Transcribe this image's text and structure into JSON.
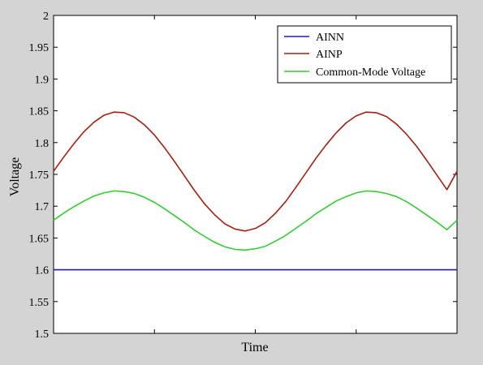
{
  "chart_data": {
    "type": "line",
    "xlabel": "Time",
    "ylabel": "Voltage",
    "ylim": [
      1.5,
      2.0
    ],
    "yticks": [
      "1.5",
      "1.55",
      "1.6",
      "1.65",
      "1.7",
      "1.75",
      "1.8",
      "1.85",
      "1.9",
      "1.95",
      "2"
    ],
    "x_ticks_shown": false,
    "grid": false,
    "legend_position": "top-right",
    "series": [
      {
        "name": "AINN",
        "color": "#1f1fa0",
        "x": [
          0,
          0.5,
          1,
          1.5,
          2,
          2.5,
          3,
          3.5,
          4,
          4.5,
          5,
          5.5,
          6,
          6.5,
          7,
          7.5,
          8,
          8.5,
          9,
          9.5,
          10,
          10.5,
          11,
          11.5,
          12,
          12.5,
          13,
          13.5,
          14,
          14.5,
          15,
          15.5,
          16,
          16.5,
          17,
          17.5,
          18,
          18.5,
          19,
          19.5,
          20
        ],
        "y": [
          1.6,
          1.6,
          1.6,
          1.6,
          1.6,
          1.6,
          1.6,
          1.6,
          1.6,
          1.6,
          1.6,
          1.6,
          1.6,
          1.6,
          1.6,
          1.6,
          1.6,
          1.6,
          1.6,
          1.6,
          1.6,
          1.6,
          1.6,
          1.6,
          1.6,
          1.6,
          1.6,
          1.6,
          1.6,
          1.6,
          1.6,
          1.6,
          1.6,
          1.6,
          1.6,
          1.6,
          1.6,
          1.6,
          1.6,
          1.6,
          1.6
        ]
      },
      {
        "name": "AINP",
        "color": "#a02010",
        "x": [
          0,
          0.5,
          1,
          1.5,
          2,
          2.5,
          3,
          3.5,
          4,
          4.5,
          5,
          5.5,
          6,
          6.5,
          7,
          7.5,
          8,
          8.5,
          9,
          9.5,
          10,
          10.5,
          11,
          11.5,
          12,
          12.5,
          13,
          13.5,
          14,
          14.5,
          15,
          15.5,
          16,
          16.5,
          17,
          17.5,
          18,
          18.5,
          19,
          19.5,
          20
        ],
        "y": [
          1.755,
          1.777,
          1.798,
          1.817,
          1.832,
          1.843,
          1.848,
          1.847,
          1.84,
          1.828,
          1.812,
          1.792,
          1.77,
          1.747,
          1.724,
          1.703,
          1.686,
          1.672,
          1.664,
          1.661,
          1.665,
          1.674,
          1.689,
          1.707,
          1.729,
          1.752,
          1.775,
          1.796,
          1.815,
          1.831,
          1.842,
          1.848,
          1.847,
          1.841,
          1.829,
          1.813,
          1.794,
          1.772,
          1.749,
          1.726,
          1.755
        ]
      },
      {
        "name": "Common-Mode Voltage",
        "color": "#33cc33",
        "x": [
          0,
          0.5,
          1,
          1.5,
          2,
          2.5,
          3,
          3.5,
          4,
          4.5,
          5,
          5.5,
          6,
          6.5,
          7,
          7.5,
          8,
          8.5,
          9,
          9.5,
          10,
          10.5,
          11,
          11.5,
          12,
          12.5,
          13,
          13.5,
          14,
          14.5,
          15,
          15.5,
          16,
          16.5,
          17,
          17.5,
          18,
          18.5,
          19,
          19.5,
          20
        ],
        "y": [
          1.678,
          1.689,
          1.699,
          1.708,
          1.716,
          1.721,
          1.724,
          1.723,
          1.72,
          1.714,
          1.706,
          1.696,
          1.685,
          1.674,
          1.662,
          1.652,
          1.643,
          1.636,
          1.632,
          1.631,
          1.633,
          1.637,
          1.645,
          1.654,
          1.665,
          1.676,
          1.688,
          1.698,
          1.708,
          1.715,
          1.721,
          1.724,
          1.723,
          1.72,
          1.715,
          1.707,
          1.697,
          1.686,
          1.675,
          1.663,
          1.678
        ]
      }
    ]
  }
}
